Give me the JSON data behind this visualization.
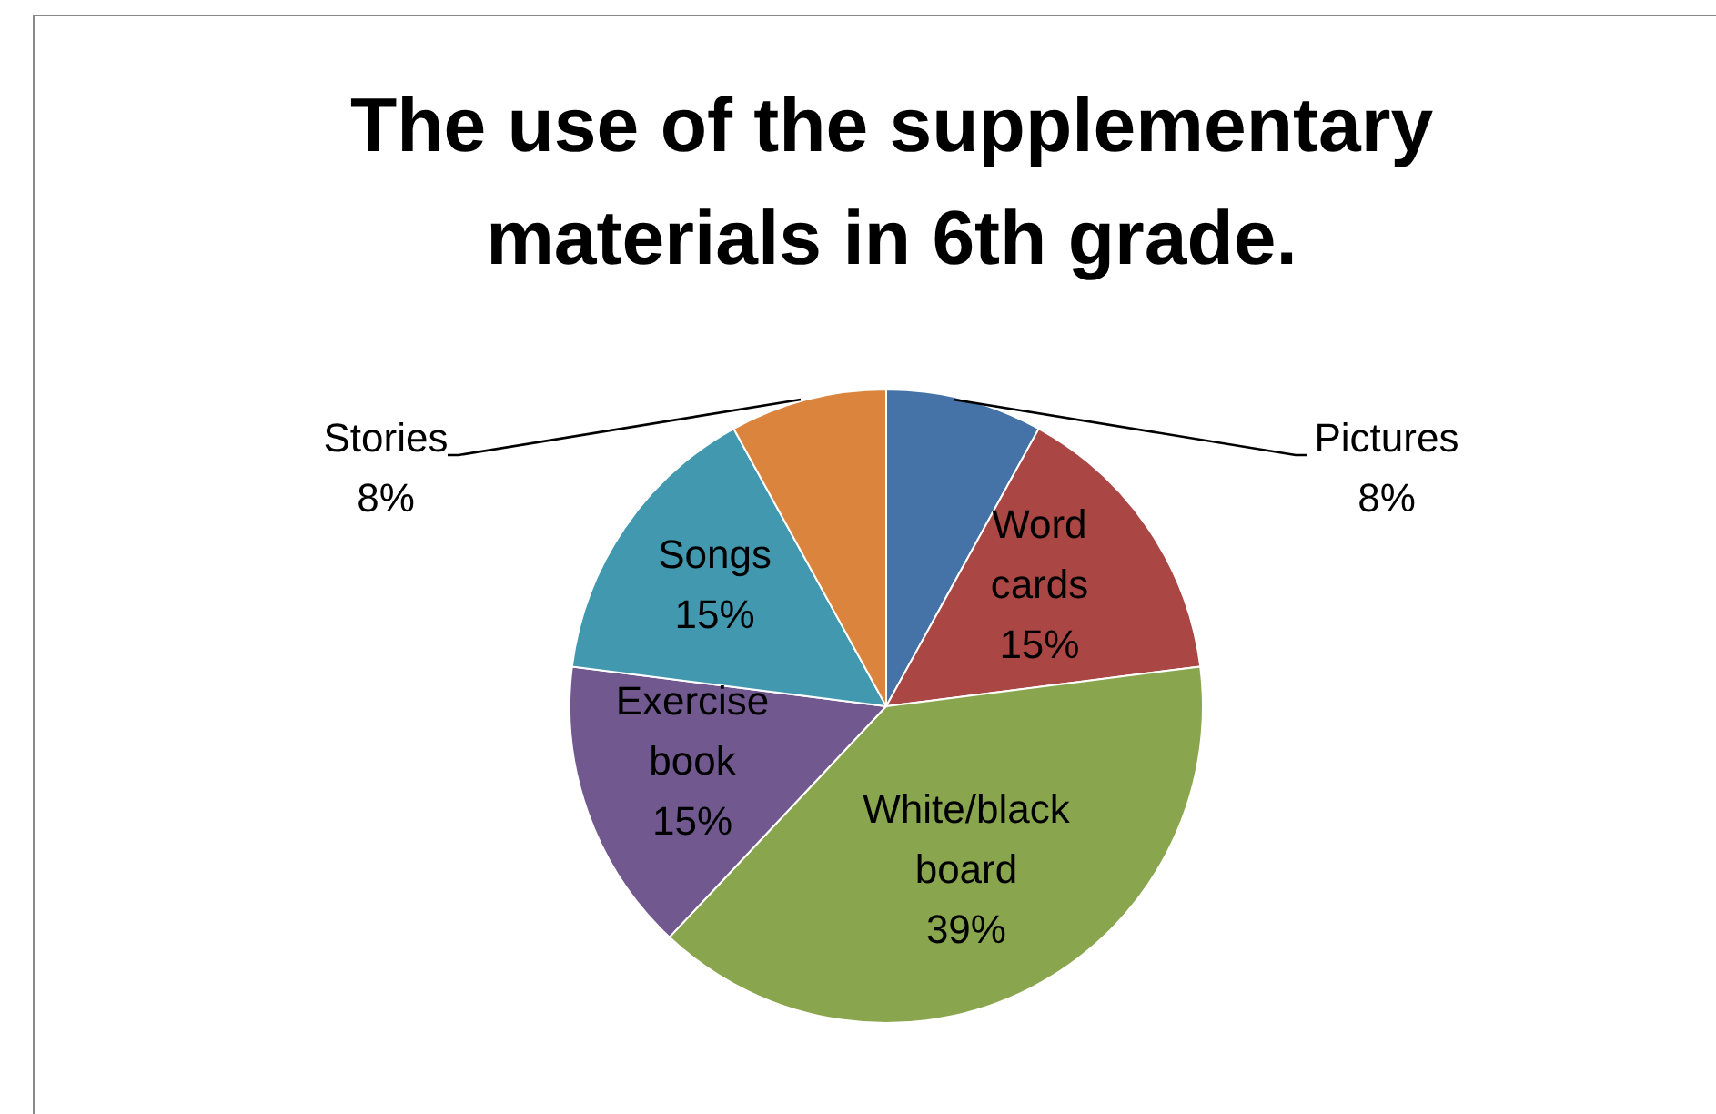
{
  "chart_data": {
    "type": "pie",
    "title": "The use of the supplementary materials in 6th grade.",
    "categories": [
      "Pictures",
      "Word cards",
      "White/black board",
      "Exercise book",
      "Songs",
      "Stories"
    ],
    "values": [
      8,
      15,
      39,
      15,
      15,
      8
    ],
    "colors": [
      "#4572a7",
      "#aa4643",
      "#89a54e",
      "#71588f",
      "#4198af",
      "#db843d"
    ],
    "value_labels": [
      "8%",
      "15%",
      "39%",
      "15%",
      "15%",
      "8%"
    ],
    "legend": false
  }
}
